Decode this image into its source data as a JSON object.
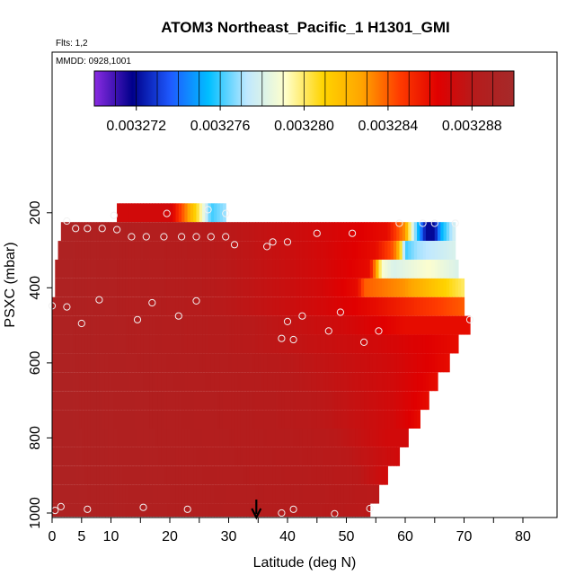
{
  "chart_data": {
    "type": "heatmap",
    "title": "ATOM3 Northeast_Pacific_1 H1301_GMI",
    "flights_label": "Flts: 1,2",
    "mmdd_label": "MMDD: 0928,1001",
    "xlabel": "Latitude (deg N)",
    "ylabel": "PSXC (mbar)",
    "xlim": [
      0,
      80
    ],
    "ylim": [
      1000,
      50
    ],
    "y_axis_reversed": true,
    "x_ticks": [
      0,
      5,
      10,
      20,
      30,
      40,
      50,
      60,
      70,
      80
    ],
    "y_ticks": [
      200,
      400,
      600,
      800,
      1000
    ],
    "colorbar": {
      "min": 0.00327,
      "max": 0.00329,
      "tick_values": [
        0.003272,
        0.003276,
        0.00328,
        0.003284,
        0.003288
      ],
      "tick_labels": [
        "0.003272",
        "0.003276",
        "0.003280",
        "0.003284",
        "0.003288"
      ],
      "colors": [
        "#8a2be2",
        "#00008b",
        "#1e5aff",
        "#00bfff",
        "#bfe8ff",
        "#ffffcc",
        "#ffd400",
        "#ffa500",
        "#ff3c00",
        "#e00000",
        "#b51c1c",
        "#a52a2a"
      ]
    },
    "arrow_latitude": 34.7,
    "colors": {
      "base": "#b22222",
      "marker": "#f2f2f2"
    },
    "layers": [
      {
        "p": 200,
        "lat_start": 11,
        "lat_end": 29.5,
        "stops": [
          [
            11,
            0.003287
          ],
          [
            20,
            0.003287
          ],
          [
            23,
            0.003283
          ],
          [
            25,
            0.00328
          ],
          [
            27,
            0.003276
          ],
          [
            29.5,
            0.003277
          ]
        ]
      },
      {
        "p": 250,
        "lat_start": 1.5,
        "lat_end": 68.5,
        "stops": [
          [
            1.5,
            0.003289
          ],
          [
            30,
            0.003288
          ],
          [
            45,
            0.003287
          ],
          [
            57,
            0.003286
          ],
          [
            60,
            0.003283
          ],
          [
            61,
            0.003279
          ],
          [
            62,
            0.003276
          ],
          [
            63.5,
            0.003272
          ],
          [
            65,
            0.003272
          ],
          [
            66,
            0.003275
          ],
          [
            68.5,
            0.003278
          ]
        ]
      },
      {
        "p": 300,
        "lat_start": 1.0,
        "lat_end": 68.5,
        "stops": [
          [
            1,
            0.003289
          ],
          [
            30,
            0.003288
          ],
          [
            45,
            0.003287
          ],
          [
            55,
            0.003286
          ],
          [
            58,
            0.003284
          ],
          [
            59,
            0.003282
          ],
          [
            60,
            0.003276
          ],
          [
            62,
            0.003277
          ],
          [
            68.5,
            0.003278
          ]
        ]
      },
      {
        "p": 350,
        "lat_start": 0.5,
        "lat_end": 69,
        "stops": [
          [
            0.5,
            0.003289
          ],
          [
            30,
            0.003288
          ],
          [
            45,
            0.003287
          ],
          [
            54,
            0.003286
          ],
          [
            55,
            0.003283
          ],
          [
            56,
            0.003279
          ],
          [
            58,
            0.003278
          ],
          [
            64,
            0.003279
          ],
          [
            69,
            0.003278
          ]
        ]
      },
      {
        "p": 400,
        "lat_start": 0.5,
        "lat_end": 70,
        "stops": [
          [
            0.5,
            0.003289
          ],
          [
            30,
            0.003288
          ],
          [
            45,
            0.003287
          ],
          [
            52,
            0.003286
          ],
          [
            53,
            0.003284
          ],
          [
            60,
            0.003283
          ],
          [
            70,
            0.00328
          ]
        ]
      },
      {
        "p": 450,
        "lat_start": 0,
        "lat_end": 70,
        "stops": [
          [
            0,
            0.003289
          ],
          [
            30,
            0.003288
          ],
          [
            45,
            0.003287
          ],
          [
            55,
            0.003286
          ],
          [
            62,
            0.003285
          ],
          [
            70,
            0.003284
          ]
        ]
      },
      {
        "p": 500,
        "lat_start": 0,
        "lat_end": 71,
        "stops": [
          [
            0,
            0.003289
          ],
          [
            35,
            0.003288
          ],
          [
            50,
            0.003287
          ],
          [
            60,
            0.003286
          ],
          [
            71,
            0.003286
          ]
        ]
      },
      {
        "p": 550,
        "lat_start": 0,
        "lat_end": 69,
        "stops": [
          [
            0,
            0.003289
          ],
          [
            35,
            0.003288
          ],
          [
            55,
            0.003287
          ],
          [
            69,
            0.003286
          ]
        ]
      },
      {
        "p": 600,
        "lat_start": 0,
        "lat_end": 67.5,
        "stops": [
          [
            0,
            0.003289
          ],
          [
            40,
            0.003288
          ],
          [
            58,
            0.003287
          ],
          [
            67.5,
            0.003286
          ]
        ]
      },
      {
        "p": 650,
        "lat_start": 0,
        "lat_end": 65.5,
        "stops": [
          [
            0,
            0.003289
          ],
          [
            42,
            0.003288
          ],
          [
            58,
            0.003287
          ],
          [
            65.5,
            0.003286
          ]
        ]
      },
      {
        "p": 700,
        "lat_start": 0,
        "lat_end": 64,
        "stops": [
          [
            0,
            0.003289
          ],
          [
            45,
            0.003288
          ],
          [
            58,
            0.003287
          ],
          [
            64,
            0.003286
          ]
        ]
      },
      {
        "p": 750,
        "lat_start": 0,
        "lat_end": 62.5,
        "stops": [
          [
            0,
            0.003289
          ],
          [
            45,
            0.003288
          ],
          [
            58,
            0.003287
          ],
          [
            62.5,
            0.003286
          ]
        ]
      },
      {
        "p": 800,
        "lat_start": 0,
        "lat_end": 60.5,
        "stops": [
          [
            0,
            0.003289
          ],
          [
            48,
            0.003288
          ],
          [
            57,
            0.003287
          ],
          [
            60.5,
            0.003287
          ]
        ]
      },
      {
        "p": 850,
        "lat_start": 0,
        "lat_end": 59,
        "stops": [
          [
            0,
            0.003289
          ],
          [
            50,
            0.003288
          ],
          [
            59,
            0.003287
          ]
        ]
      },
      {
        "p": 900,
        "lat_start": 0,
        "lat_end": 57,
        "stops": [
          [
            0,
            0.003289
          ],
          [
            52,
            0.003288
          ],
          [
            57,
            0.003287
          ]
        ]
      },
      {
        "p": 950,
        "lat_start": 0,
        "lat_end": 55.5,
        "stops": [
          [
            0,
            0.003289
          ],
          [
            55.5,
            0.003288
          ]
        ]
      },
      {
        "p": 1000,
        "lat_start": 0,
        "lat_end": 54,
        "stops": [
          [
            0,
            0.003289
          ],
          [
            54,
            0.003288
          ]
        ]
      }
    ],
    "observations": [
      {
        "lat": 2.5,
        "p": 222
      },
      {
        "lat": 10.5,
        "p": 207
      },
      {
        "lat": 19.5,
        "p": 202
      },
      {
        "lat": 26.5,
        "p": 192
      },
      {
        "lat": 29.5,
        "p": 202
      },
      {
        "lat": 4,
        "p": 242
      },
      {
        "lat": 6,
        "p": 242
      },
      {
        "lat": 8.5,
        "p": 242
      },
      {
        "lat": 11,
        "p": 245
      },
      {
        "lat": 13.5,
        "p": 264
      },
      {
        "lat": 16,
        "p": 264
      },
      {
        "lat": 19,
        "p": 264
      },
      {
        "lat": 22,
        "p": 264
      },
      {
        "lat": 24.5,
        "p": 264
      },
      {
        "lat": 27,
        "p": 264
      },
      {
        "lat": 29.5,
        "p": 264
      },
      {
        "lat": 31,
        "p": 285
      },
      {
        "lat": 36.5,
        "p": 290
      },
      {
        "lat": 37.5,
        "p": 278
      },
      {
        "lat": 40,
        "p": 278
      },
      {
        "lat": 45,
        "p": 255
      },
      {
        "lat": 51,
        "p": 255
      },
      {
        "lat": 59,
        "p": 228
      },
      {
        "lat": 63,
        "p": 228
      },
      {
        "lat": 65,
        "p": 228
      },
      {
        "lat": 68.5,
        "p": 228
      },
      {
        "lat": 0,
        "p": 448
      },
      {
        "lat": 2.5,
        "p": 451
      },
      {
        "lat": 8,
        "p": 432
      },
      {
        "lat": 17,
        "p": 440
      },
      {
        "lat": 24.5,
        "p": 435
      },
      {
        "lat": 5,
        "p": 495
      },
      {
        "lat": 14.5,
        "p": 485
      },
      {
        "lat": 21.5,
        "p": 475
      },
      {
        "lat": 42.5,
        "p": 475
      },
      {
        "lat": 49,
        "p": 465
      },
      {
        "lat": 40,
        "p": 490
      },
      {
        "lat": 39,
        "p": 535
      },
      {
        "lat": 41,
        "p": 538
      },
      {
        "lat": 47,
        "p": 515
      },
      {
        "lat": 53,
        "p": 545
      },
      {
        "lat": 55.5,
        "p": 515
      },
      {
        "lat": 71,
        "p": 485
      },
      {
        "lat": 0.5,
        "p": 993
      },
      {
        "lat": 1.5,
        "p": 983
      },
      {
        "lat": 6,
        "p": 990
      },
      {
        "lat": 15.5,
        "p": 985
      },
      {
        "lat": 23,
        "p": 990
      },
      {
        "lat": 39,
        "p": 1000
      },
      {
        "lat": 41,
        "p": 990
      },
      {
        "lat": 48,
        "p": 1002
      },
      {
        "lat": 54,
        "p": 988
      }
    ]
  }
}
